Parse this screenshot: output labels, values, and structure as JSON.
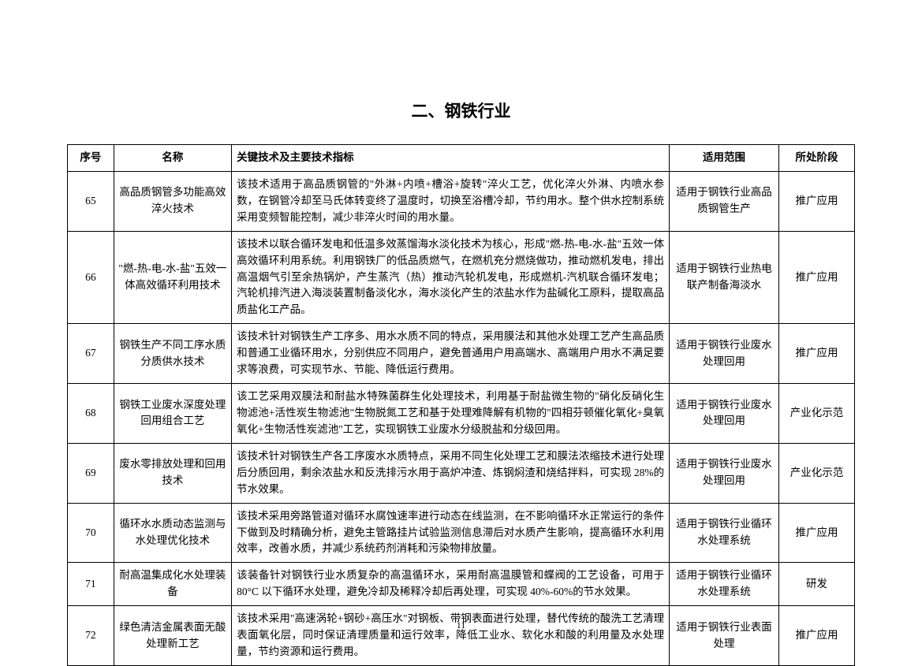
{
  "title": "二、钢铁行业",
  "page_number": "11",
  "headers": {
    "num": "序号",
    "name": "名称",
    "desc": "关键技术及主要技术指标",
    "scope": "适用范围",
    "stage": "所处阶段"
  },
  "rows": [
    {
      "num": "65",
      "name": "高品质钢管多功能高效淬火技术",
      "desc": "该技术适用于高品质钢管的\"外淋+内喷+槽浴+旋转\"淬火工艺，优化淬火外淋、内喷水参数，在钢管冷却至马氏体转变终了温度时，切换至浴槽冷却，节约用水。整个供水控制系统采用变频智能控制，减少非淬火时间的用水量。",
      "scope": "适用于钢铁行业高品质钢管生产",
      "stage": "推广应用"
    },
    {
      "num": "66",
      "name": "\"燃-热-电-水-盐\"五效一体高效循环利用技术",
      "desc": "该技术以联合循环发电和低温多效蒸馏海水淡化技术为核心，形成\"燃-热-电-水-盐\"五效一体高效循环利用系统。利用钢铁厂的低品质燃气，在燃机充分燃烧做功，推动燃机发电，排出高温烟气引至余热锅炉，产生蒸汽（热）推动汽轮机发电，形成燃机-汽机联合循环发电；汽轮机排汽进入海淡装置制备淡化水，海水淡化产生的浓盐水作为盐碱化工原料，提取高品质盐化工产品。",
      "scope": "适用于钢铁行业热电联产制备海淡水",
      "stage": "推广应用"
    },
    {
      "num": "67",
      "name": "钢铁生产不同工序水质分质供水技术",
      "desc": "该技术针对钢铁生产工序多、用水水质不同的特点，采用膜法和其他水处理工艺产生高品质和普通工业循环用水，分别供应不同用户，避免普通用户用高端水、高端用户用水不满足要求等浪费，可实现节水、节能、降低运行费用。",
      "scope": "适用于钢铁行业废水处理回用",
      "stage": "推广应用"
    },
    {
      "num": "68",
      "name": "钢铁工业废水深度处理回用组合工艺",
      "desc": "该工艺采用双膜法和耐盐水特殊菌群生化处理技术，利用基于耐盐微生物的\"硝化反硝化生物滤池+活性炭生物滤池\"生物脱氮工艺和基于处理难降解有机物的\"四相芬顿催化氧化+臭氧氧化+生物活性炭滤池\"工艺，实现钢铁工业废水分级脱盐和分级回用。",
      "scope": "适用于钢铁行业废水处理回用",
      "stage": "产业化示范"
    },
    {
      "num": "69",
      "name": "废水零排放处理和回用技术",
      "desc": "该技术针对钢铁生产各工序废水水质特点，采用不同生化处理工艺和膜法浓缩技术进行处理后分质回用，剩余浓盐水和反洗排污水用于高炉冲渣、炼钢焖渣和烧结拌料，可实现 28%的节水效果。",
      "scope": "适用于钢铁行业废水处理回用",
      "stage": "产业化示范"
    },
    {
      "num": "70",
      "name": "循环水水质动态监测与水处理优化技术",
      "desc": "该技术采用旁路管道对循环水腐蚀速率进行动态在线监测，在不影响循环水正常运行的条件下做到及时精确分析，避免主管路挂片试验监测信息滞后对水质产生影响，提高循环水利用效率，改善水质，并减少系统药剂消耗和污染物排放量。",
      "scope": "适用于钢铁行业循环水处理系统",
      "stage": "推广应用"
    },
    {
      "num": "71",
      "name": "耐高温集成化水处理装备",
      "desc": "该装备针对钢铁行业水质复杂的高温循环水，采用耐高温膜管和蝶阀的工艺设备，可用于80°C 以下循环水处理，避免冷却及稀释冷却后再处理，可实现 40%-60%的节水效果。",
      "scope": "适用于钢铁行业循环水处理系统",
      "stage": "研发"
    },
    {
      "num": "72",
      "name": "绿色清洁金属表面无酸处理新工艺",
      "desc": "该技术采用\"高速涡轮+钢砂+高压水\"对钢板、带钢表面进行处理，替代传统的酸洗工艺清理表面氧化层，同时保证清理质量和运行效率，降低工业水、软化水和酸的利用量及水处理量，节约资源和运行费用。",
      "scope": "适用于钢铁行业表面处理",
      "stage": "推广应用"
    }
  ]
}
